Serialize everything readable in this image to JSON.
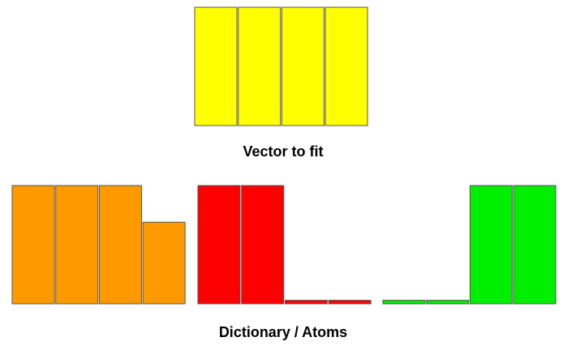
{
  "vector": {
    "label": "Vector to fit",
    "color": "#ffff00",
    "values": [
      1,
      1,
      1,
      1
    ]
  },
  "dictionary": {
    "label": "Dictionary / Atoms",
    "atoms": [
      {
        "color": "#ff9900",
        "values": [
          1,
          1,
          1,
          0.69
        ]
      },
      {
        "color": "#ff0000",
        "values": [
          1,
          1,
          0.03,
          0.03
        ]
      },
      {
        "color": "#00ee00",
        "values": [
          0.03,
          0.03,
          1,
          1
        ]
      }
    ]
  }
}
